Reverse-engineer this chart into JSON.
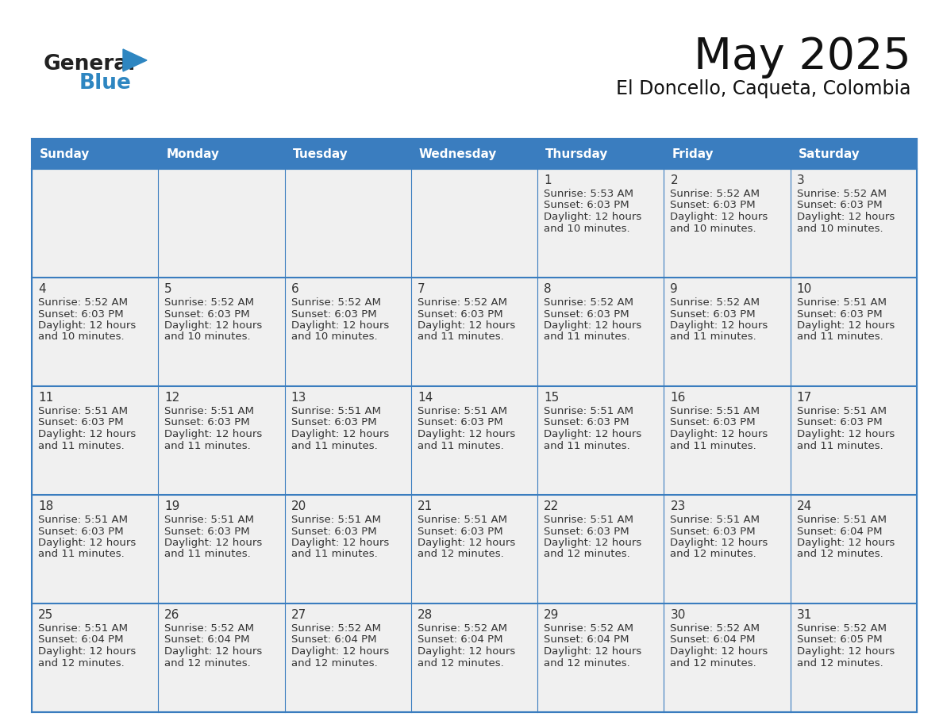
{
  "title": "May 2025",
  "subtitle": "El Doncello, Caqueta, Colombia",
  "days_of_week": [
    "Sunday",
    "Monday",
    "Tuesday",
    "Wednesday",
    "Thursday",
    "Friday",
    "Saturday"
  ],
  "header_bg": "#3a7dbf",
  "header_text": "#ffffff",
  "cell_bg": "#f0f0f0",
  "cell_text": "#333333",
  "day_num_color": "#333333",
  "border_color": "#3a7dbf",
  "grid_color": "#3a7dbf",
  "logo_general_color": "#222222",
  "logo_blue_color": "#2e86c1",
  "calendar": [
    [
      null,
      null,
      null,
      null,
      {
        "day": 1,
        "sunrise": "5:53 AM",
        "sunset": "6:03 PM",
        "daylight": "12 hours",
        "daylight2": "and 10 minutes."
      },
      {
        "day": 2,
        "sunrise": "5:52 AM",
        "sunset": "6:03 PM",
        "daylight": "12 hours",
        "daylight2": "and 10 minutes."
      },
      {
        "day": 3,
        "sunrise": "5:52 AM",
        "sunset": "6:03 PM",
        "daylight": "12 hours",
        "daylight2": "and 10 minutes."
      }
    ],
    [
      {
        "day": 4,
        "sunrise": "5:52 AM",
        "sunset": "6:03 PM",
        "daylight": "12 hours",
        "daylight2": "and 10 minutes."
      },
      {
        "day": 5,
        "sunrise": "5:52 AM",
        "sunset": "6:03 PM",
        "daylight": "12 hours",
        "daylight2": "and 10 minutes."
      },
      {
        "day": 6,
        "sunrise": "5:52 AM",
        "sunset": "6:03 PM",
        "daylight": "12 hours",
        "daylight2": "and 10 minutes."
      },
      {
        "day": 7,
        "sunrise": "5:52 AM",
        "sunset": "6:03 PM",
        "daylight": "12 hours",
        "daylight2": "and 11 minutes."
      },
      {
        "day": 8,
        "sunrise": "5:52 AM",
        "sunset": "6:03 PM",
        "daylight": "12 hours",
        "daylight2": "and 11 minutes."
      },
      {
        "day": 9,
        "sunrise": "5:52 AM",
        "sunset": "6:03 PM",
        "daylight": "12 hours",
        "daylight2": "and 11 minutes."
      },
      {
        "day": 10,
        "sunrise": "5:51 AM",
        "sunset": "6:03 PM",
        "daylight": "12 hours",
        "daylight2": "and 11 minutes."
      }
    ],
    [
      {
        "day": 11,
        "sunrise": "5:51 AM",
        "sunset": "6:03 PM",
        "daylight": "12 hours",
        "daylight2": "and 11 minutes."
      },
      {
        "day": 12,
        "sunrise": "5:51 AM",
        "sunset": "6:03 PM",
        "daylight": "12 hours",
        "daylight2": "and 11 minutes."
      },
      {
        "day": 13,
        "sunrise": "5:51 AM",
        "sunset": "6:03 PM",
        "daylight": "12 hours",
        "daylight2": "and 11 minutes."
      },
      {
        "day": 14,
        "sunrise": "5:51 AM",
        "sunset": "6:03 PM",
        "daylight": "12 hours",
        "daylight2": "and 11 minutes."
      },
      {
        "day": 15,
        "sunrise": "5:51 AM",
        "sunset": "6:03 PM",
        "daylight": "12 hours",
        "daylight2": "and 11 minutes."
      },
      {
        "day": 16,
        "sunrise": "5:51 AM",
        "sunset": "6:03 PM",
        "daylight": "12 hours",
        "daylight2": "and 11 minutes."
      },
      {
        "day": 17,
        "sunrise": "5:51 AM",
        "sunset": "6:03 PM",
        "daylight": "12 hours",
        "daylight2": "and 11 minutes."
      }
    ],
    [
      {
        "day": 18,
        "sunrise": "5:51 AM",
        "sunset": "6:03 PM",
        "daylight": "12 hours",
        "daylight2": "and 11 minutes."
      },
      {
        "day": 19,
        "sunrise": "5:51 AM",
        "sunset": "6:03 PM",
        "daylight": "12 hours",
        "daylight2": "and 11 minutes."
      },
      {
        "day": 20,
        "sunrise": "5:51 AM",
        "sunset": "6:03 PM",
        "daylight": "12 hours",
        "daylight2": "and 11 minutes."
      },
      {
        "day": 21,
        "sunrise": "5:51 AM",
        "sunset": "6:03 PM",
        "daylight": "12 hours",
        "daylight2": "and 12 minutes."
      },
      {
        "day": 22,
        "sunrise": "5:51 AM",
        "sunset": "6:03 PM",
        "daylight": "12 hours",
        "daylight2": "and 12 minutes."
      },
      {
        "day": 23,
        "sunrise": "5:51 AM",
        "sunset": "6:03 PM",
        "daylight": "12 hours",
        "daylight2": "and 12 minutes."
      },
      {
        "day": 24,
        "sunrise": "5:51 AM",
        "sunset": "6:04 PM",
        "daylight": "12 hours",
        "daylight2": "and 12 minutes."
      }
    ],
    [
      {
        "day": 25,
        "sunrise": "5:51 AM",
        "sunset": "6:04 PM",
        "daylight": "12 hours",
        "daylight2": "and 12 minutes."
      },
      {
        "day": 26,
        "sunrise": "5:52 AM",
        "sunset": "6:04 PM",
        "daylight": "12 hours",
        "daylight2": "and 12 minutes."
      },
      {
        "day": 27,
        "sunrise": "5:52 AM",
        "sunset": "6:04 PM",
        "daylight": "12 hours",
        "daylight2": "and 12 minutes."
      },
      {
        "day": 28,
        "sunrise": "5:52 AM",
        "sunset": "6:04 PM",
        "daylight": "12 hours",
        "daylight2": "and 12 minutes."
      },
      {
        "day": 29,
        "sunrise": "5:52 AM",
        "sunset": "6:04 PM",
        "daylight": "12 hours",
        "daylight2": "and 12 minutes."
      },
      {
        "day": 30,
        "sunrise": "5:52 AM",
        "sunset": "6:04 PM",
        "daylight": "12 hours",
        "daylight2": "and 12 minutes."
      },
      {
        "day": 31,
        "sunrise": "5:52 AM",
        "sunset": "6:05 PM",
        "daylight": "12 hours",
        "daylight2": "and 12 minutes."
      }
    ]
  ]
}
